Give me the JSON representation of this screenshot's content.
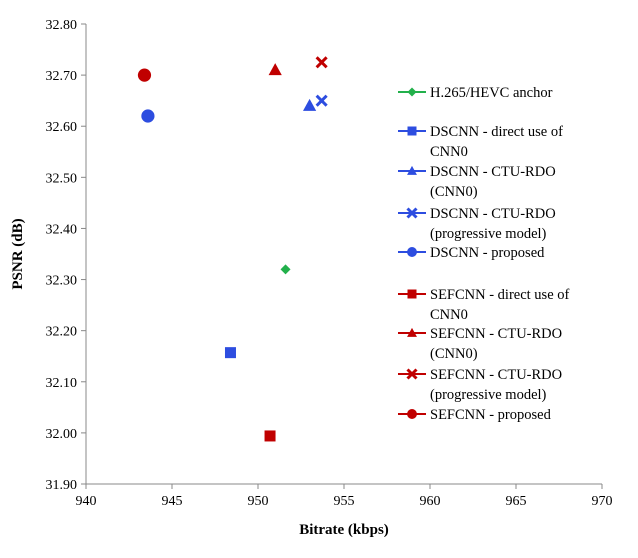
{
  "chart_data": {
    "type": "scatter",
    "title": "",
    "xlabel": "Bitrate (kbps)",
    "ylabel": "PSNR (dB)",
    "xlim": [
      940,
      970
    ],
    "ylim": [
      31.9,
      32.8
    ],
    "xticks": [
      940,
      945,
      950,
      955,
      960,
      965,
      970
    ],
    "yticks": [
      31.9,
      32.0,
      32.1,
      32.2,
      32.3,
      32.4,
      32.5,
      32.6,
      32.7,
      32.8
    ],
    "yticks_labels": [
      "31.90",
      "32.00",
      "32.10",
      "32.20",
      "32.30",
      "32.40",
      "32.50",
      "32.60",
      "32.70",
      "32.80"
    ],
    "xticks_labels": [
      "940",
      "945",
      "950",
      "955",
      "960",
      "965",
      "970"
    ],
    "grid": false,
    "legend_position": "right",
    "series": [
      {
        "name_lines": [
          "H.265/HEVC anchor"
        ],
        "marker": "diamond",
        "color": "#22b04b",
        "points": [
          [
            951.6,
            32.32
          ]
        ]
      },
      {
        "name_lines": [
          "DSCNN - direct use of",
          "CNN0"
        ],
        "marker": "square",
        "color": "#2d4de0",
        "points": [
          [
            948.4,
            32.157
          ]
        ]
      },
      {
        "name_lines": [
          "DSCNN - CTU-RDO",
          "(CNN0)"
        ],
        "marker": "triangle",
        "color": "#2d4de0",
        "points": [
          [
            953.0,
            32.64
          ]
        ]
      },
      {
        "name_lines": [
          "DSCNN - CTU-RDO",
          "(progressive model)"
        ],
        "marker": "x",
        "color": "#2d4de0",
        "points": [
          [
            953.7,
            32.65
          ]
        ]
      },
      {
        "name_lines": [
          "DSCNN - proposed"
        ],
        "marker": "circle",
        "color": "#2d4de0",
        "points": [
          [
            943.6,
            32.62
          ]
        ]
      },
      {
        "name_lines": [
          "SEFCNN - direct use of",
          "CNN0"
        ],
        "marker": "square",
        "color": "#c00000",
        "points": [
          [
            950.7,
            31.994
          ]
        ]
      },
      {
        "name_lines": [
          "SEFCNN - CTU-RDO",
          "(CNN0)"
        ],
        "marker": "triangle",
        "color": "#c00000",
        "points": [
          [
            951.0,
            32.71
          ]
        ]
      },
      {
        "name_lines": [
          "SEFCNN - CTU-RDO",
          "(progressive model)"
        ],
        "marker": "x",
        "color": "#c00000",
        "points": [
          [
            953.7,
            32.725
          ]
        ]
      },
      {
        "name_lines": [
          "SEFCNN - proposed"
        ],
        "marker": "circle",
        "color": "#c00000",
        "points": [
          [
            943.4,
            32.7
          ]
        ]
      }
    ]
  }
}
